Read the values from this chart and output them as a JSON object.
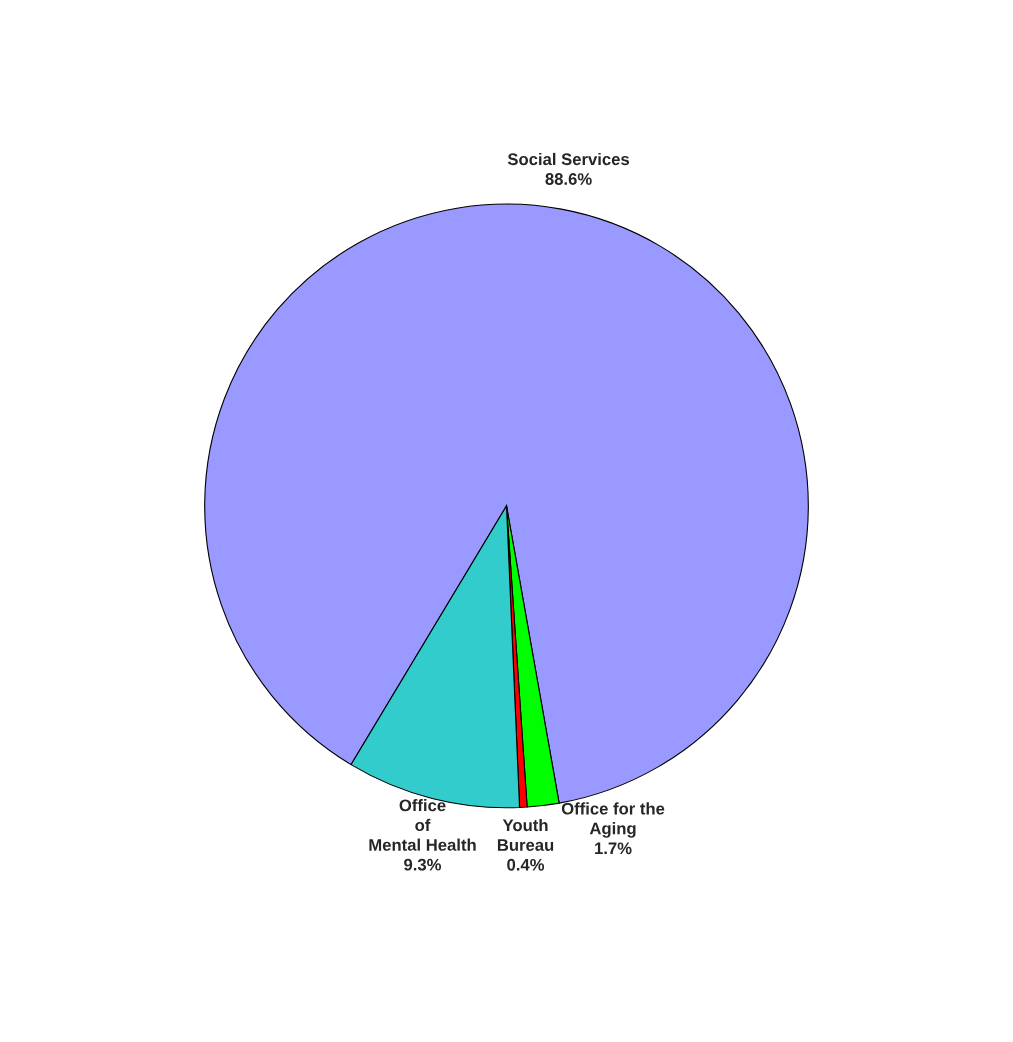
{
  "chart_data": {
    "type": "pie",
    "categories": [
      "Social Services",
      "Office for the\nAging",
      "Youth\nBureau",
      "Office\nof\nMental Health"
    ],
    "values": [
      88.6,
      1.7,
      0.4,
      9.3
    ],
    "value_labels": [
      "88.6%",
      "1.7%",
      "0.4%",
      "9.3%"
    ],
    "colors": [
      "#9999ff",
      "#00ff00",
      "#ff0000",
      "#33cccc"
    ]
  }
}
